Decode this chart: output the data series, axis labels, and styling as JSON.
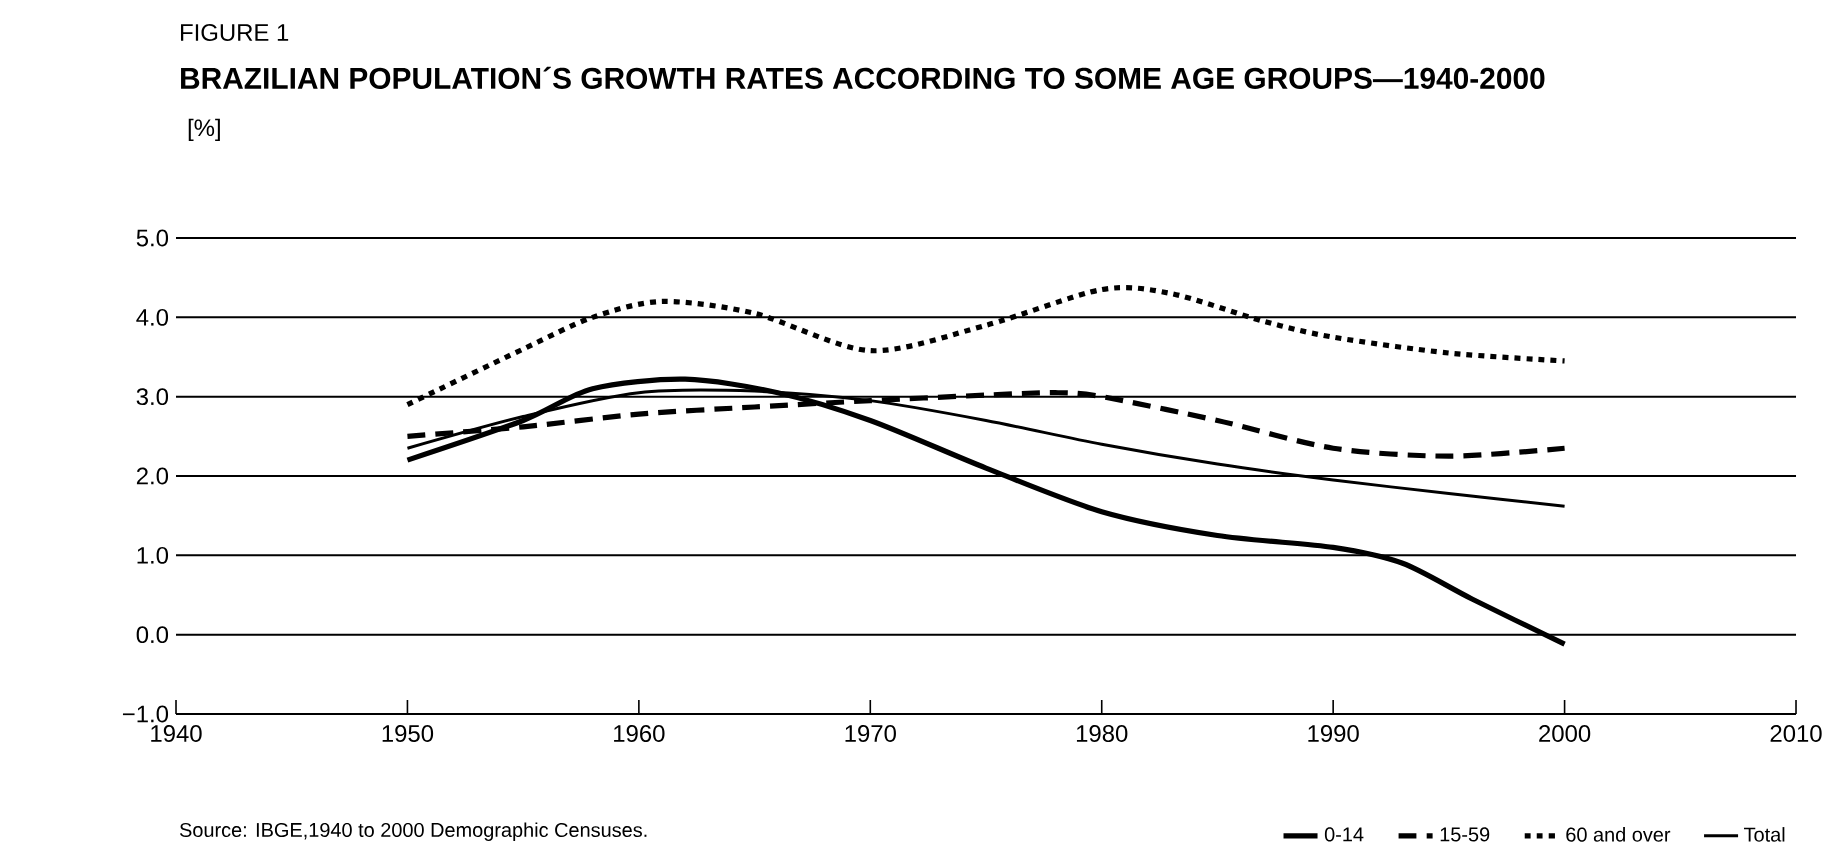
{
  "chart_data": {
    "type": "line",
    "subtitle": "FIGURE 1",
    "title": "BRAZILIAN POPULATION´S GROWTH RATES ACCORDING TO SOME AGE GROUPS—1940-2000",
    "ylabel": "[%]",
    "annotations": [
      "Source: IBGE,1940 to 2000 Demographic Censuses."
    ],
    "xlim": [
      1940,
      2010
    ],
    "xticks": [
      1940,
      1950,
      1960,
      1970,
      1980,
      1990,
      2000,
      2010
    ],
    "ylim": [
      -1,
      5
    ],
    "yticks": [
      {
        "value": -1,
        "label": "−1.0"
      },
      {
        "value": 0,
        "label": "0.0"
      },
      {
        "value": 1,
        "label": "1.0"
      },
      {
        "value": 2,
        "label": "2.0"
      },
      {
        "value": 3,
        "label": "3.0"
      },
      {
        "value": 4,
        "label": "4.0"
      },
      {
        "value": 5,
        "label": "5.0"
      }
    ],
    "grid": "y",
    "legend": "bottom right",
    "marker": "none",
    "series": [
      {
        "name": "0-14",
        "color": "#000000",
        "line_style": "solid",
        "x": [
          1950,
          1955,
          1958,
          1962,
          1966,
          1970,
          1975,
          1980,
          1985,
          1990,
          1993,
          1996,
          2000
        ],
        "values": [
          2.2,
          2.7,
          3.1,
          3.22,
          3.05,
          2.7,
          2.1,
          1.55,
          1.25,
          1.1,
          0.9,
          0.45,
          -0.12
        ]
      },
      {
        "name": "15-59",
        "color": "#000000",
        "line_style": "dashed",
        "x": [
          1950,
          1955,
          1960,
          1965,
          1970,
          1975,
          1978,
          1980,
          1985,
          1990,
          1995,
          2000
        ],
        "values": [
          2.5,
          2.62,
          2.78,
          2.87,
          2.95,
          3.02,
          3.05,
          3.0,
          2.7,
          2.35,
          2.25,
          2.35
        ]
      },
      {
        "name": "60 and over",
        "color": "#000000",
        "line_style": "dotted",
        "x": [
          1950,
          1955,
          1958,
          1961,
          1965,
          1970,
          1975,
          1980,
          1983,
          1987,
          1990,
          1995,
          2000
        ],
        "values": [
          2.9,
          3.6,
          4.0,
          4.2,
          4.05,
          3.58,
          3.9,
          4.35,
          4.3,
          3.95,
          3.75,
          3.55,
          3.45
        ]
      },
      {
        "name": "Total",
        "color": "#000000",
        "line_style": "solid",
        "x": [
          1950,
          1955,
          1960,
          1965,
          1970,
          1975,
          1980,
          1985,
          1990,
          1995,
          2000
        ],
        "values": [
          2.35,
          2.75,
          3.05,
          3.07,
          2.95,
          2.7,
          2.4,
          2.15,
          1.95,
          1.78,
          1.62
        ]
      }
    ]
  }
}
